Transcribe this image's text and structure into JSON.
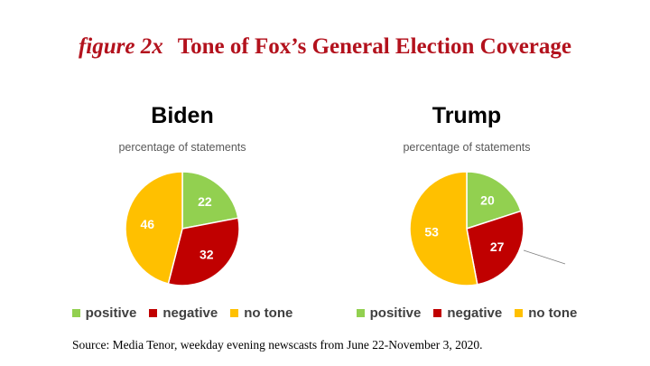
{
  "header": {
    "figure_label": "figure 2x",
    "title": "Tone of Fox’s General Election Coverage"
  },
  "colors": {
    "title": "#b3121d",
    "positive": "#92d050",
    "negative": "#c00000",
    "no_tone": "#ffc000"
  },
  "chart_data": [
    {
      "type": "pie",
      "title": "Biden",
      "subtitle": "percentage of statements",
      "categories": [
        "positive",
        "negative",
        "no tone"
      ],
      "values": [
        22,
        32,
        46
      ],
      "labels": [
        "22",
        "32",
        "46"
      ],
      "legend": [
        "positive",
        "negative",
        "no tone"
      ],
      "legend_position": "bottom"
    },
    {
      "type": "pie",
      "title": "Trump",
      "subtitle": "percentage of statements",
      "categories": [
        "positive",
        "negative",
        "no tone"
      ],
      "values": [
        20,
        27,
        53
      ],
      "labels": [
        "20",
        "27",
        "53"
      ],
      "legend": [
        "positive",
        "negative",
        "no tone"
      ],
      "legend_position": "bottom"
    }
  ],
  "footer": {
    "source": "Source: Media Tenor, weekday evening newscasts from June 22-November 3, 2020."
  }
}
